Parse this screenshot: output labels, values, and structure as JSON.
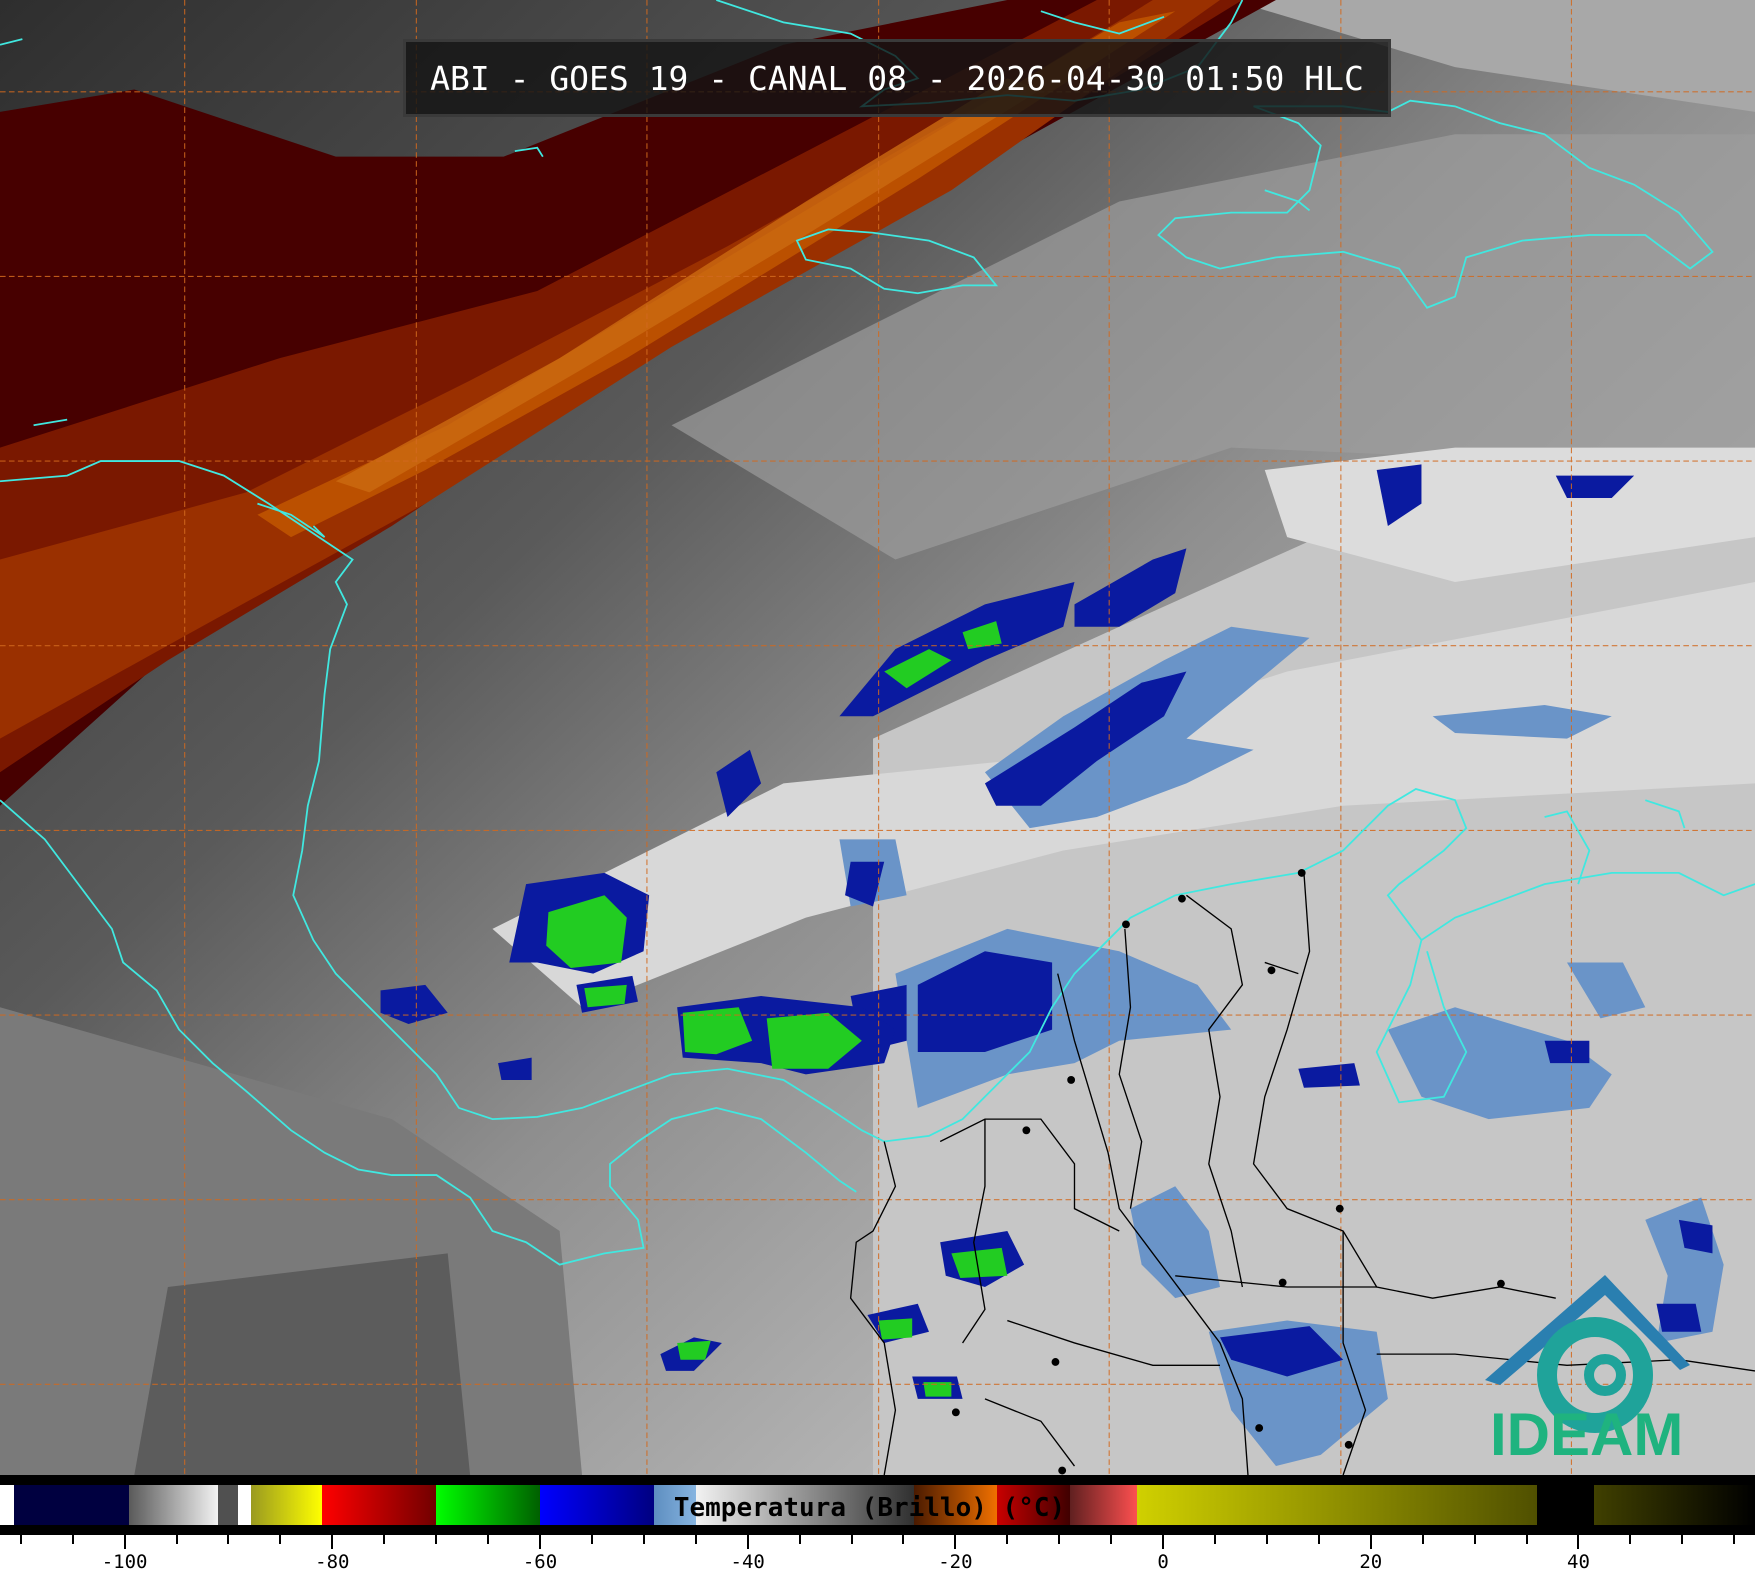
{
  "title": "ABI - GOES 19 - CANAL 08 - 2026-04-30 01:50 HLC",
  "logo": {
    "text": "IDEAM",
    "text_color": "#1fb37f",
    "roof_color": "#2a7fb0",
    "swirl_color": "#1fa39a"
  },
  "map": {
    "coastline_color": "#40e8e0",
    "grid_color": "#d2691e",
    "border_color": "#000000"
  },
  "colorbar": {
    "label": "Temperatura (Brillo) (°C)",
    "range": [
      -112,
      57
    ],
    "tick_labels": [
      "-100",
      "-80",
      "-60",
      "-40",
      "-20",
      "0",
      "20",
      "40"
    ],
    "segments": [
      {
        "from": -112,
        "to": -110.7,
        "colors": [
          "#ffffff",
          "#ffffff"
        ]
      },
      {
        "from": -110.7,
        "to": -99.6,
        "colors": [
          "#000040",
          "#000040"
        ]
      },
      {
        "from": -99.6,
        "to": -91,
        "colors": [
          "#5a5a5a",
          "#f4f4f4"
        ]
      },
      {
        "from": -91,
        "to": -89.1,
        "colors": [
          "#505050",
          "#505050"
        ]
      },
      {
        "from": -89.1,
        "to": -87.8,
        "colors": [
          "#ffffff",
          "#ffffff"
        ]
      },
      {
        "from": -87.8,
        "to": -81,
        "colors": [
          "#9a9a20",
          "#ffff00"
        ]
      },
      {
        "from": -81,
        "to": -70,
        "colors": [
          "#ff0000",
          "#700000"
        ]
      },
      {
        "from": -70,
        "to": -60,
        "colors": [
          "#00ff00",
          "#006000"
        ]
      },
      {
        "from": -60,
        "to": -49,
        "colors": [
          "#0000ff",
          "#000080"
        ]
      },
      {
        "from": -49,
        "to": -45,
        "colors": [
          "#5e8ec0",
          "#86b4e0"
        ]
      },
      {
        "from": -45,
        "to": -24,
        "colors": [
          "#f2f2f2",
          "#303030"
        ]
      },
      {
        "from": -24,
        "to": -16,
        "colors": [
          "#4a1a00",
          "#f07000"
        ]
      },
      {
        "from": -16,
        "to": -9,
        "colors": [
          "#c80000",
          "#400000"
        ]
      },
      {
        "from": -9,
        "to": -2.5,
        "colors": [
          "#602020",
          "#ff5050"
        ]
      },
      {
        "from": -2.5,
        "to": 36,
        "colors": [
          "#d0d000",
          "#505000"
        ]
      },
      {
        "from": 36,
        "to": 41.5,
        "colors": [
          "#000000",
          "#000000"
        ]
      },
      {
        "from": 41.5,
        "to": 57,
        "colors": [
          "#404000",
          "#000000"
        ]
      }
    ]
  }
}
